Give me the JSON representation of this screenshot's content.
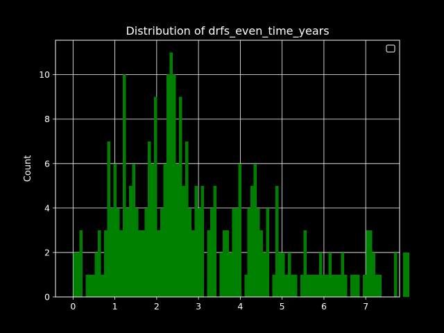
{
  "chart_data": {
    "type": "bar",
    "subtype": "histogram",
    "title": "Distribution of drfs_even_time_years",
    "xlabel": "",
    "ylabel": "Count",
    "xlim": [
      -0.42,
      7.81
    ],
    "ylim": [
      0,
      11.55
    ],
    "xticks": [
      0,
      1,
      2,
      3,
      4,
      5,
      6,
      7
    ],
    "yticks": [
      0,
      2,
      4,
      6,
      8,
      10
    ],
    "grid": true,
    "legend": "upper-right, empty",
    "bar_color": "#008000",
    "background": "#000000",
    "foreground": "#ffffff",
    "bin_start": 0.0,
    "bin_width": 0.0745,
    "counts": [
      2,
      2,
      3,
      0,
      1,
      1,
      1,
      2,
      3,
      1,
      3,
      7,
      4,
      6,
      4,
      3,
      10,
      4,
      5,
      6,
      4,
      3,
      3,
      4,
      7,
      6,
      9,
      3,
      4,
      6,
      10,
      11,
      10,
      6,
      9,
      5,
      7,
      4,
      3,
      5,
      4,
      5,
      0,
      3,
      4,
      5,
      0,
      2,
      3,
      3,
      2,
      4,
      4,
      6,
      0,
      1,
      4,
      5,
      6,
      4,
      3,
      2,
      4,
      0,
      1,
      5,
      2,
      2,
      1,
      2,
      1,
      1,
      0,
      1,
      3,
      1,
      1,
      1,
      1,
      2,
      1,
      1,
      2,
      1,
      1,
      1,
      2,
      1,
      0,
      1,
      1,
      1,
      0,
      1,
      3,
      3,
      2,
      1,
      1,
      0,
      0,
      0,
      0,
      2,
      0,
      0,
      2,
      2
    ]
  }
}
